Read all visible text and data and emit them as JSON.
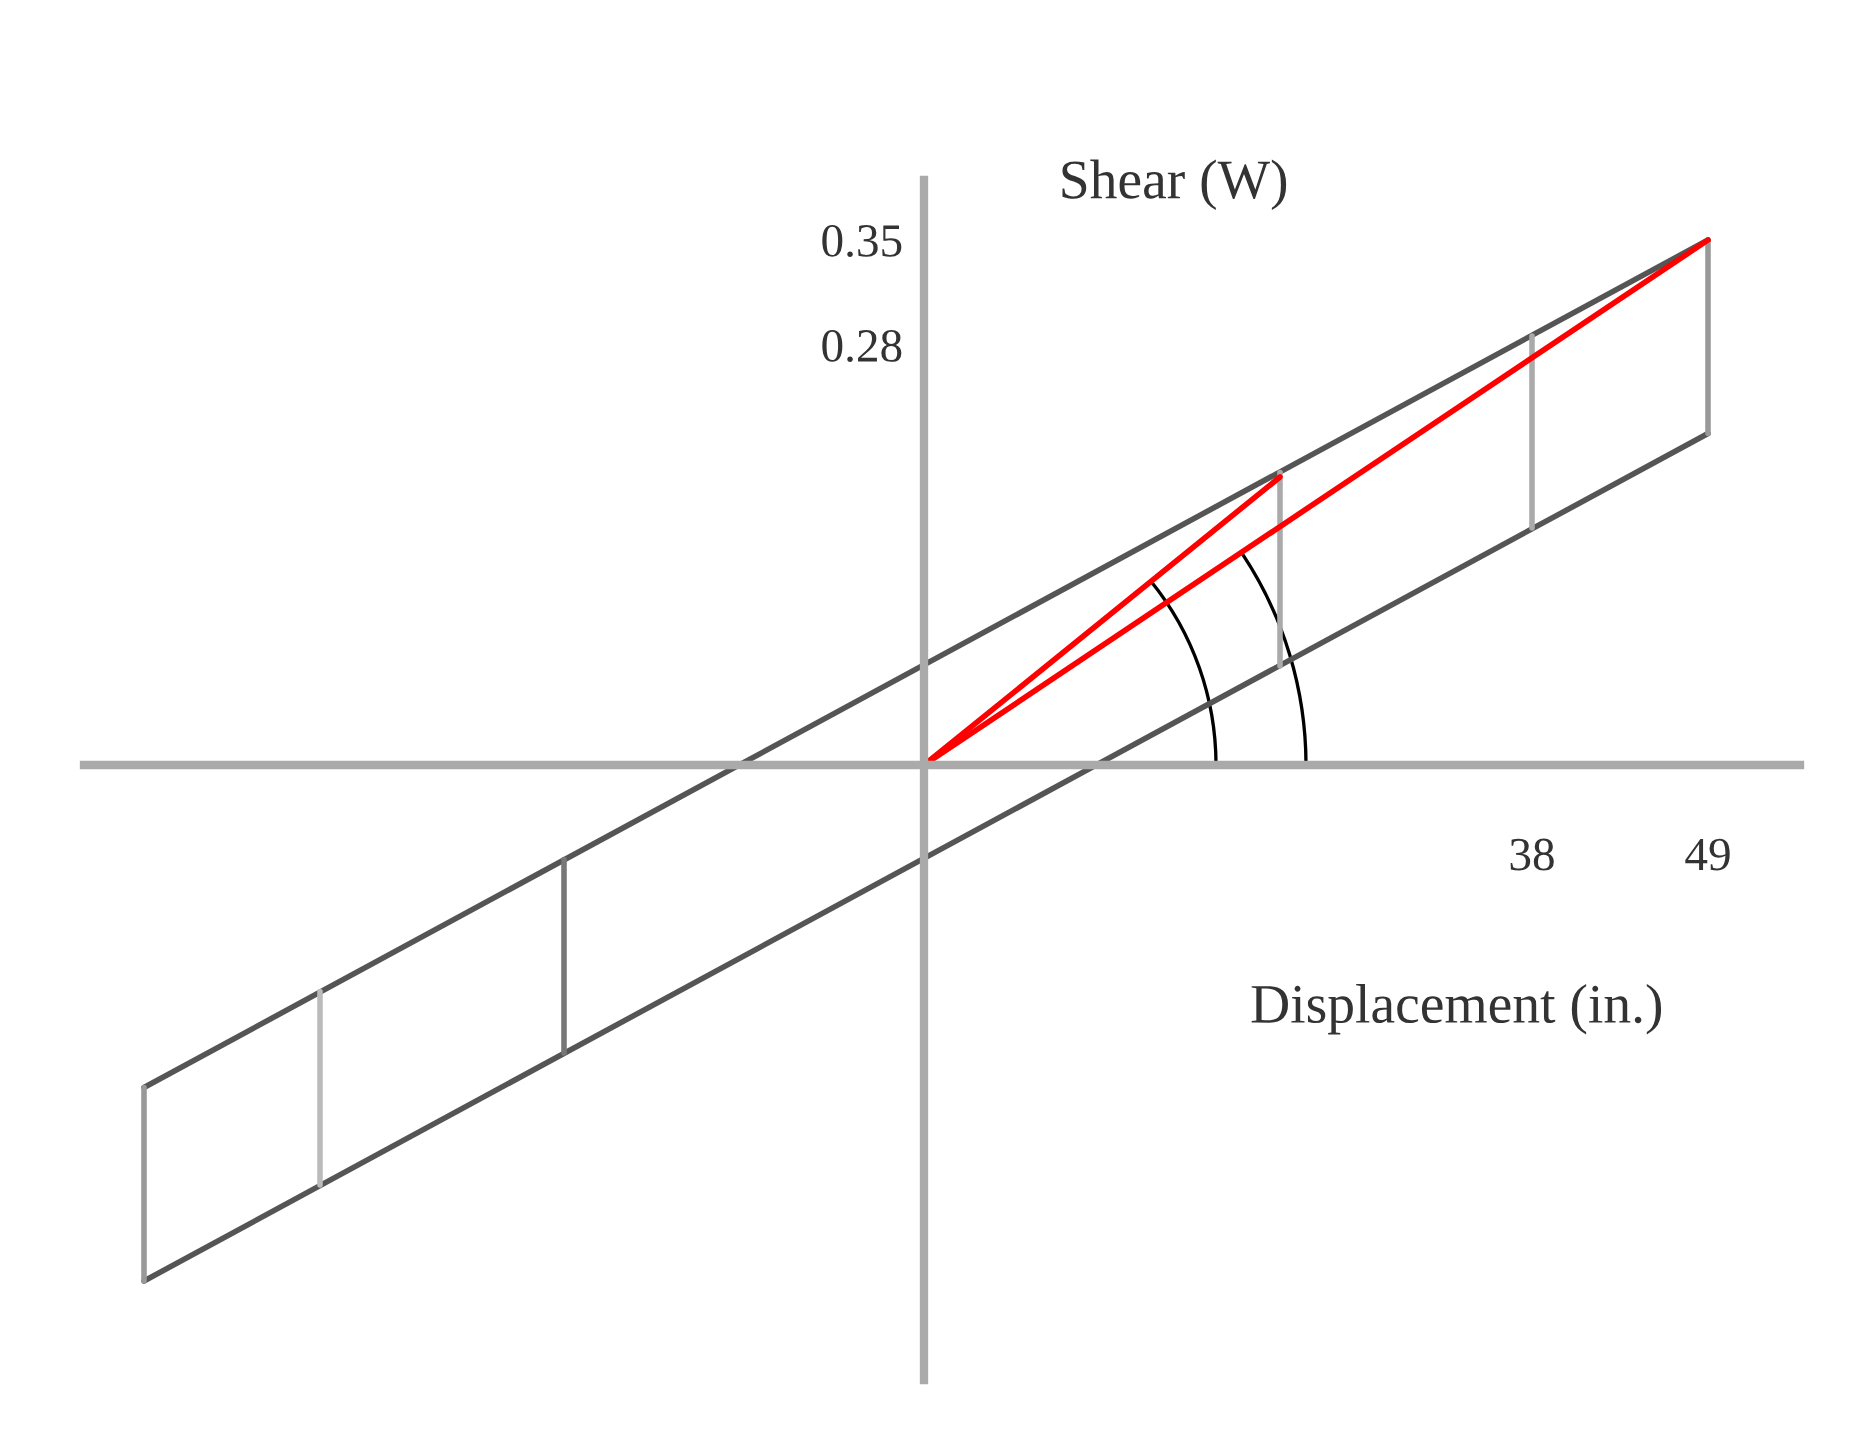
{
  "chart_data": {
    "type": "line",
    "xlabel": "Displacement (in.)",
    "ylabel": "Shear (W)",
    "xlim": [
      -52.5,
      54.75
    ],
    "ylim": [
      -0.41,
      0.39
    ],
    "xticks": [
      38,
      49
    ],
    "yticks": [
      0.28,
      0.35
    ],
    "series": [
      {
        "color": "#555555",
        "x": [
          -48.75,
          49
        ],
        "values": [
          -0.215,
          0.35
        ]
      },
      {
        "color": "#555555",
        "x": [
          -48.75,
          49
        ],
        "values": [
          -0.344,
          0.221
        ]
      },
      {
        "color": "#999999",
        "x": [
          -48.75,
          -48.75
        ],
        "values": [
          -0.344,
          -0.215
        ]
      },
      {
        "color": "#bbbbbb",
        "x": [
          -37.75,
          -37.75
        ],
        "values": [
          -0.28,
          -0.151
        ]
      },
      {
        "color": "#777777",
        "x": [
          -22.5,
          -22.5
        ],
        "values": [
          -0.192,
          -0.063
        ]
      },
      {
        "color": "#aaaaaa",
        "x": [
          22.25,
          22.25
        ],
        "values": [
          0.066,
          0.195
        ]
      },
      {
        "color": "#aaaaaa",
        "x": [
          38,
          38
        ],
        "values": [
          0.158,
          0.286
        ]
      },
      {
        "color": "#999999",
        "x": [
          49,
          49
        ],
        "values": [
          0.221,
          0.35
        ]
      },
      {
        "color": "#ff0000",
        "x": [
          0,
          22.25
        ],
        "values": [
          0,
          0.192
        ]
      },
      {
        "color": "#ff0000",
        "x": [
          0,
          49
        ],
        "values": [
          0,
          0.35
        ]
      }
    ]
  }
}
